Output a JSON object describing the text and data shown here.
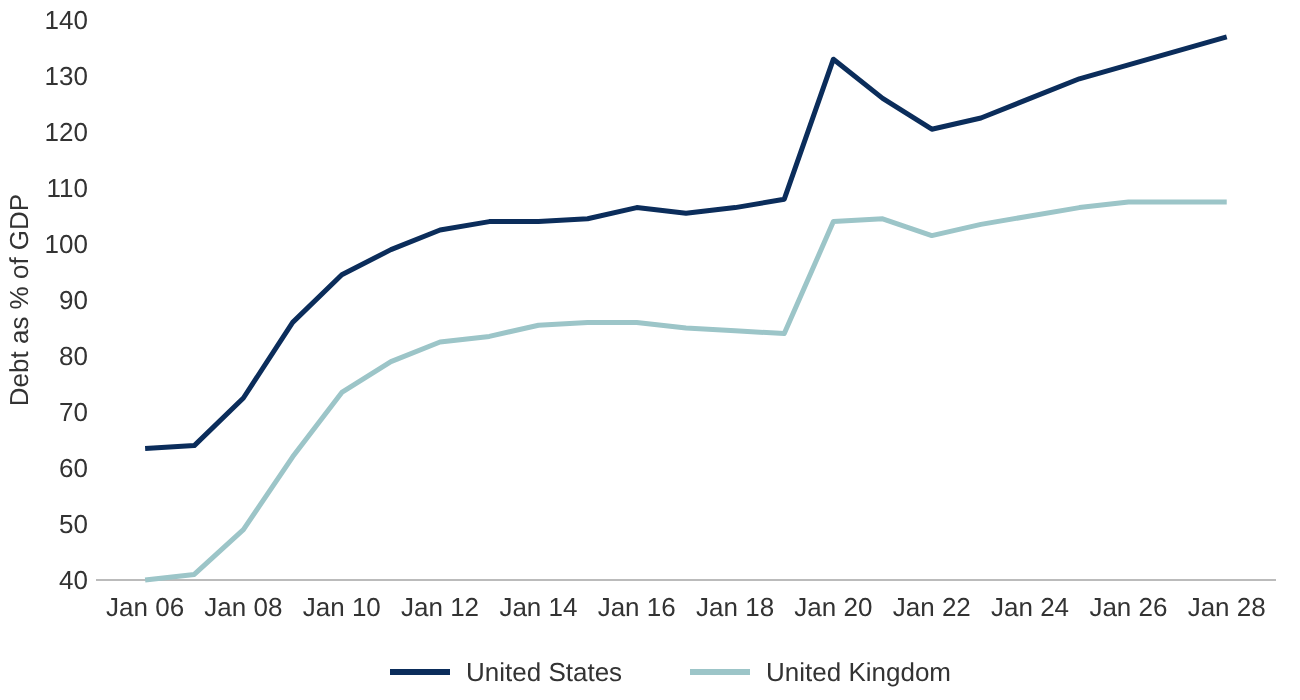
{
  "chart_data": {
    "type": "line",
    "ylabel": "Debt as % of GDP",
    "x": [
      "2006-01",
      "2007-01",
      "2008-01",
      "2009-01",
      "2010-01",
      "2011-01",
      "2012-01",
      "2013-01",
      "2014-01",
      "2015-01",
      "2016-01",
      "2017-01",
      "2018-01",
      "2019-01",
      "2020-01",
      "2021-01",
      "2022-01",
      "2023-01",
      "2024-01",
      "2025-01",
      "2026-01",
      "2027-01",
      "2028-01"
    ],
    "series": [
      {
        "name": "United States",
        "color": "#0b2d5b",
        "values": [
          63.5,
          64,
          72.5,
          86,
          94.5,
          99,
          102.5,
          104,
          104,
          104.5,
          106.5,
          105.5,
          106.5,
          108,
          133,
          126,
          120.5,
          122.5,
          126,
          129.5,
          132,
          134.5,
          137
        ]
      },
      {
        "name": "United Kingdom",
        "color": "#9cc5c8",
        "values": [
          40,
          41,
          49,
          62,
          73.5,
          79,
          82.5,
          83.5,
          85.5,
          86,
          86,
          85,
          84.5,
          84,
          104,
          104.5,
          101.5,
          103.5,
          105,
          106.5,
          107.5,
          107.5,
          107.5
        ]
      }
    ],
    "xlim": [
      "2005-01",
      "2029-01"
    ],
    "xticks": [
      {
        "value": "2006-01",
        "label": "Jan 06"
      },
      {
        "value": "2008-01",
        "label": "Jan 08"
      },
      {
        "value": "2010-01",
        "label": "Jan 10"
      },
      {
        "value": "2012-01",
        "label": "Jan 12"
      },
      {
        "value": "2014-01",
        "label": "Jan 14"
      },
      {
        "value": "2016-01",
        "label": "Jan 16"
      },
      {
        "value": "2018-01",
        "label": "Jan 18"
      },
      {
        "value": "2020-01",
        "label": "Jan 20"
      },
      {
        "value": "2022-01",
        "label": "Jan 22"
      },
      {
        "value": "2024-01",
        "label": "Jan 24"
      },
      {
        "value": "2026-01",
        "label": "Jan 26"
      },
      {
        "value": "2028-01",
        "label": "Jan 28"
      }
    ],
    "ylim": [
      40,
      140
    ],
    "yticks": [
      40,
      50,
      60,
      70,
      80,
      90,
      100,
      110,
      120,
      130,
      140
    ],
    "grid": false,
    "legend": "bottom",
    "line_style": "solid",
    "marker": "none"
  }
}
